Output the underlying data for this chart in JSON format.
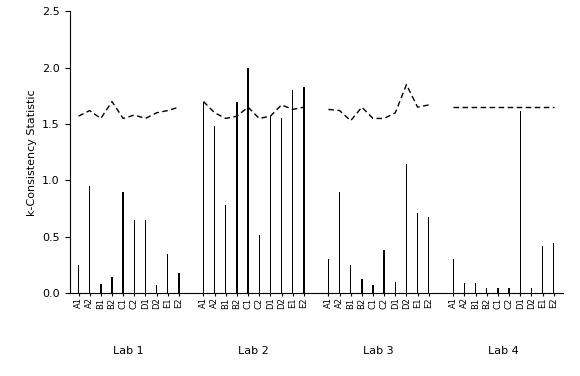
{
  "coatings": [
    "A1",
    "A2",
    "B1",
    "B2",
    "C1",
    "C2",
    "D1",
    "D2",
    "E1",
    "E2"
  ],
  "lab1_bars": [
    0.25,
    0.95,
    0.08,
    0.14,
    0.9,
    0.65,
    0.65,
    0.07,
    0.35,
    0.18
  ],
  "lab2_bars": [
    1.7,
    1.48,
    0.78,
    1.7,
    2.0,
    0.52,
    1.57,
    1.55,
    1.8,
    1.83
  ],
  "lab3_bars": [
    0.3,
    0.9,
    0.25,
    0.13,
    0.07,
    0.38,
    0.1,
    1.15,
    0.71,
    0.68
  ],
  "lab4_bars": [
    0.3,
    0.09,
    0.09,
    0.05,
    0.05,
    0.05,
    1.62,
    0.05,
    0.42,
    0.45
  ],
  "lab1_dashed": [
    1.57,
    1.62,
    1.55,
    1.7,
    1.55,
    1.58,
    1.55,
    1.6,
    1.62,
    1.65
  ],
  "lab2_dashed": [
    1.7,
    1.6,
    1.55,
    1.57,
    1.65,
    1.55,
    1.57,
    1.67,
    1.63,
    1.65
  ],
  "lab3_dashed": [
    1.63,
    1.62,
    1.53,
    1.65,
    1.55,
    1.55,
    1.6,
    1.85,
    1.65,
    1.67
  ],
  "lab4_dashed": [
    1.65,
    1.65,
    1.65,
    1.65,
    1.65,
    1.65,
    1.65,
    1.65,
    1.65,
    1.65
  ],
  "bar_color": "#000000",
  "dashed_color": "#000000",
  "ylabel": "k-Consistency Statistic",
  "ylim": [
    0.0,
    2.5
  ],
  "yticks": [
    0.0,
    0.5,
    1.0,
    1.5,
    2.0,
    2.5
  ],
  "lab_labels": [
    "Lab 1",
    "Lab 2",
    "Lab 3",
    "Lab 4"
  ],
  "figsize": [
    5.8,
    3.76
  ],
  "dpi": 100
}
